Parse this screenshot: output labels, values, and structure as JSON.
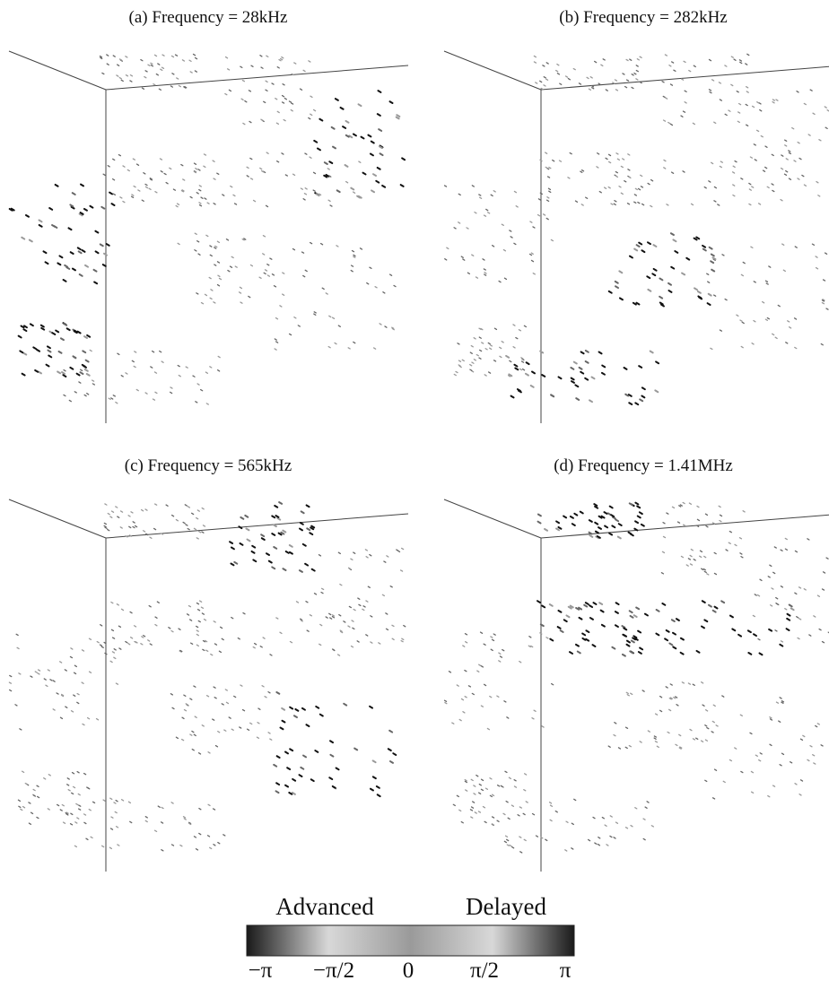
{
  "panels": [
    {
      "title": "(a) Frequency = 28kHz"
    },
    {
      "title": "(b) Frequency = 282kHz"
    },
    {
      "title": "(c) Frequency = 565kHz"
    },
    {
      "title": "(d) Frequency = 1.41MHz"
    }
  ],
  "colorbar": {
    "left_label": "Advanced",
    "right_label": "Delayed",
    "tick_labels": [
      "−π",
      "−π/2",
      "0",
      "π/2",
      "π"
    ]
  }
}
